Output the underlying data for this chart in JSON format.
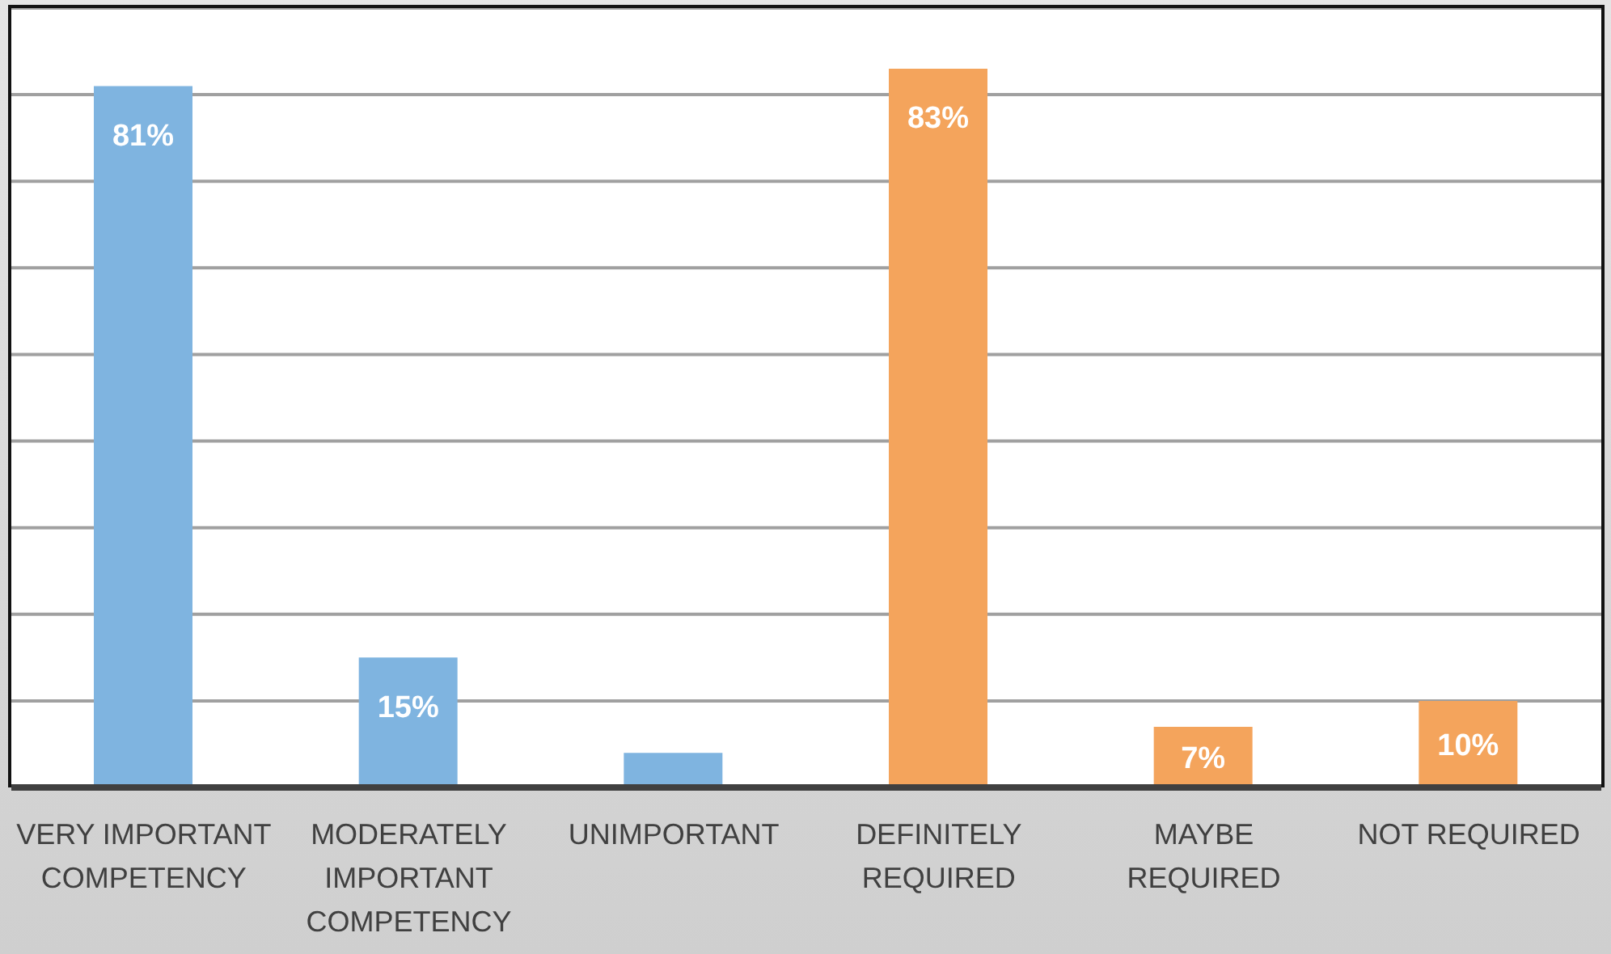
{
  "chart_data": {
    "type": "bar",
    "categories": [
      "VERY IMPORTANT COMPETENCY",
      "MODERATELY IMPORTANT COMPETENCY",
      "UNIMPORTANT",
      "DEFINITELY REQUIRED",
      "MAYBE REQUIRED",
      "NOT REQUIRED"
    ],
    "values": [
      81,
      15,
      4,
      83,
      7,
      10
    ],
    "colors": [
      "#7fb4e0",
      "#7fb4e0",
      "#7fb4e0",
      "#f4a45c",
      "#f4a45c",
      "#f4a45c"
    ],
    "value_labels": [
      "81%",
      "15%",
      null,
      "83%",
      "7%",
      "10%"
    ],
    "ylim": [
      0,
      90
    ],
    "tick_labels": "x",
    "grid": "y"
  }
}
